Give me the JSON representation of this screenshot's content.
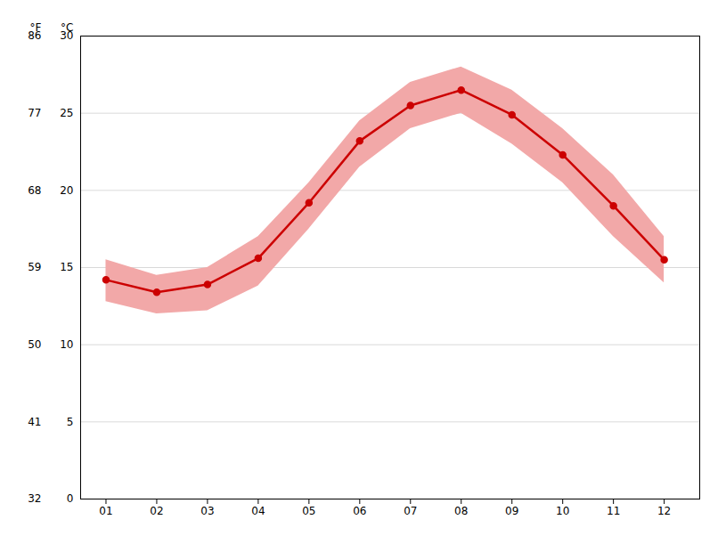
{
  "chart_data": {
    "type": "line",
    "x": [
      1,
      2,
      3,
      4,
      5,
      6,
      7,
      8,
      9,
      10,
      11,
      12
    ],
    "xlim": [
      0.5,
      12.7
    ],
    "xticks": [
      {
        "value": 1,
        "label": "01"
      },
      {
        "value": 2,
        "label": "02"
      },
      {
        "value": 3,
        "label": "03"
      },
      {
        "value": 4,
        "label": "04"
      },
      {
        "value": 5,
        "label": "05"
      },
      {
        "value": 6,
        "label": "06"
      },
      {
        "value": 7,
        "label": "07"
      },
      {
        "value": 8,
        "label": "08"
      },
      {
        "value": 9,
        "label": "09"
      },
      {
        "value": 10,
        "label": "10"
      },
      {
        "value": 11,
        "label": "11"
      },
      {
        "value": 12,
        "label": "12"
      }
    ],
    "ylim": [
      0,
      30
    ],
    "yticks": [
      0,
      5,
      10,
      15,
      20,
      25,
      30
    ],
    "ylabel": "°C",
    "y2lim": [
      32,
      86
    ],
    "y2ticks": [
      32,
      41,
      50,
      59,
      68,
      77,
      86
    ],
    "y2label": "°F",
    "grid": true,
    "series": [
      {
        "values": [
          14.2,
          13.4,
          13.9,
          15.6,
          19.2,
          23.2,
          25.5,
          26.5,
          24.9,
          22.3,
          19.0,
          15.5
        ],
        "color": "#cc0000",
        "marker": "o"
      }
    ],
    "band": {
      "lower": [
        12.8,
        12.0,
        12.2,
        13.8,
        17.5,
        21.5,
        24.0,
        25.0,
        23.0,
        20.5,
        17.0,
        14.0
      ],
      "upper": [
        15.5,
        14.5,
        15.0,
        17.0,
        20.5,
        24.5,
        27.0,
        28.0,
        26.5,
        24.0,
        21.0,
        17.0
      ],
      "color": "#f2a8a8"
    }
  }
}
